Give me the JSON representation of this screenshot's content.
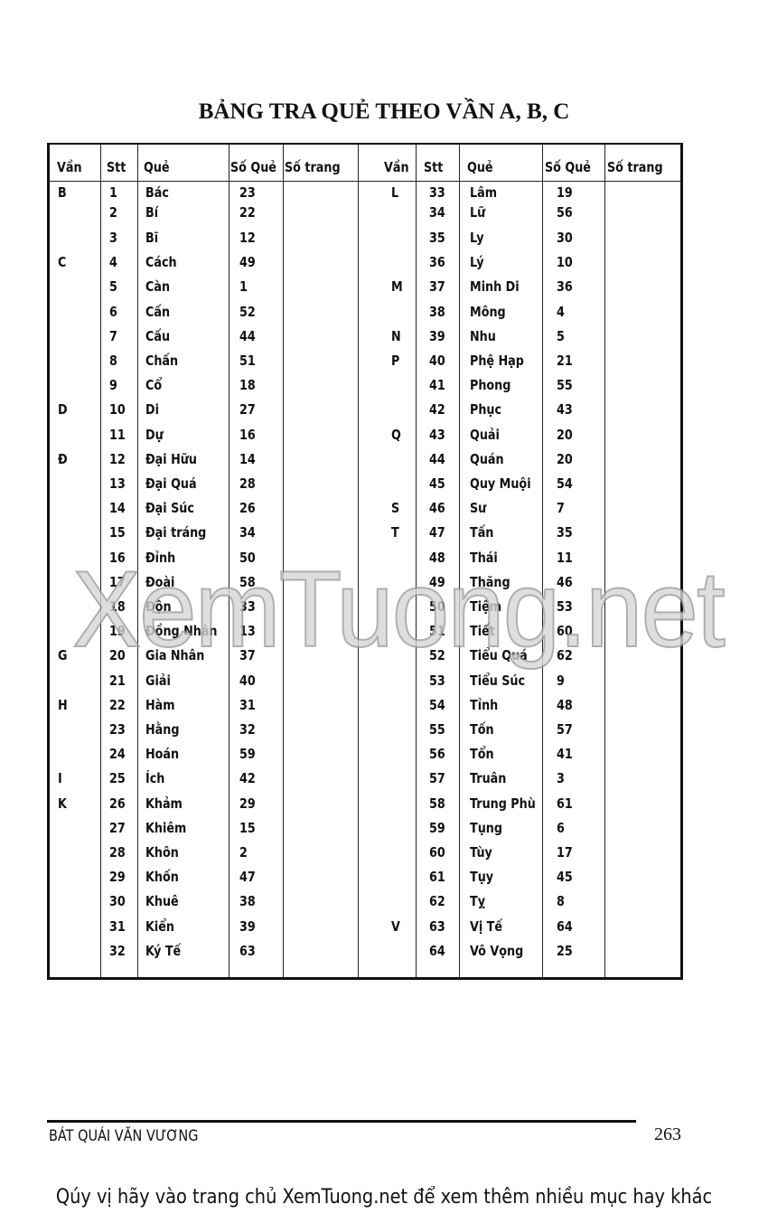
{
  "title": "BẢNG TRA QUẺ THEO VẦN  A, B, C",
  "headers": {
    "van": "Vần",
    "stt": "Stt",
    "que": "Quẻ",
    "so_que": "Số Quẻ",
    "so_trang": "Số trang"
  },
  "left_rows": [
    {
      "van": "B",
      "stt": "1",
      "que": "Bác",
      "so_que": "23"
    },
    {
      "van": "",
      "stt": "2",
      "que": "Bí",
      "so_que": "22"
    },
    {
      "van": "",
      "stt": "3",
      "que": "Bĩ",
      "so_que": "12"
    },
    {
      "van": "C",
      "stt": "4",
      "que": "Cách",
      "so_que": "49"
    },
    {
      "van": "",
      "stt": "5",
      "que": "Càn",
      "so_que": "1"
    },
    {
      "van": "",
      "stt": "6",
      "que": "Cấn",
      "so_que": "52"
    },
    {
      "van": "",
      "stt": "7",
      "que": "Cấu",
      "so_que": "44"
    },
    {
      "van": "",
      "stt": "8",
      "que": "Chấn",
      "so_que": "51"
    },
    {
      "van": "",
      "stt": "9",
      "que": "Cổ",
      "so_que": "18"
    },
    {
      "van": "D",
      "stt": "10",
      "que": "Di",
      "so_que": "27"
    },
    {
      "van": "",
      "stt": "11",
      "que": "Dự",
      "so_que": "16"
    },
    {
      "van": "Đ",
      "stt": "12",
      "que": "Đại Hữu",
      "so_que": "14"
    },
    {
      "van": "",
      "stt": "13",
      "que": "Đại Quá",
      "so_que": "28"
    },
    {
      "van": "",
      "stt": "14",
      "que": "Đại Súc",
      "so_que": "26"
    },
    {
      "van": "",
      "stt": "15",
      "que": "Đại tráng",
      "so_que": "34"
    },
    {
      "van": "",
      "stt": "16",
      "que": "Đỉnh",
      "so_que": "50"
    },
    {
      "van": "",
      "stt": "17",
      "que": "Đoài",
      "so_que": "58"
    },
    {
      "van": "",
      "stt": "18",
      "que": "Độn",
      "so_que": "33"
    },
    {
      "van": "",
      "stt": "19",
      "que": "Đồng Nhân",
      "so_que": "13"
    },
    {
      "van": "G",
      "stt": "20",
      "que": "Gia Nhân",
      "so_que": "37"
    },
    {
      "van": "",
      "stt": "21",
      "que": "Giải",
      "so_que": "40"
    },
    {
      "van": "H",
      "stt": "22",
      "que": "Hàm",
      "so_que": "31"
    },
    {
      "van": "",
      "stt": "23",
      "que": "Hằng",
      "so_que": "32"
    },
    {
      "van": "",
      "stt": "24",
      "que": "Hoán",
      "so_que": "59"
    },
    {
      "van": "I",
      "stt": "25",
      "que": "Ích",
      "so_que": "42"
    },
    {
      "van": "K",
      "stt": "26",
      "que": "Khảm",
      "so_que": "29"
    },
    {
      "van": "",
      "stt": "27",
      "que": "Khiêm",
      "so_que": "15"
    },
    {
      "van": "",
      "stt": "28",
      "que": "Khôn",
      "so_que": "2"
    },
    {
      "van": "",
      "stt": "29",
      "que": "Khốn",
      "so_que": "47"
    },
    {
      "van": "",
      "stt": "30",
      "que": "Khuê",
      "so_que": "38"
    },
    {
      "van": "",
      "stt": "31",
      "que": "Kiển",
      "so_que": "39"
    },
    {
      "van": "",
      "stt": "32",
      "que": "Ký Tế",
      "so_que": "63"
    }
  ],
  "right_rows": [
    {
      "van": "L",
      "stt": "33",
      "que": "Lâm",
      "so_que": "19"
    },
    {
      "van": "",
      "stt": "34",
      "que": "Lữ",
      "so_que": "56"
    },
    {
      "van": "",
      "stt": "35",
      "que": "Ly",
      "so_que": "30"
    },
    {
      "van": "",
      "stt": "36",
      "que": "Lý",
      "so_que": "10"
    },
    {
      "van": "M",
      "stt": "37",
      "que": "Minh Di",
      "so_que": "36"
    },
    {
      "van": "",
      "stt": "38",
      "que": "Mông",
      "so_que": "4"
    },
    {
      "van": "N",
      "stt": "39",
      "que": "Nhu",
      "so_que": "5"
    },
    {
      "van": "P",
      "stt": "40",
      "que": "Phệ Hạp",
      "so_que": "21"
    },
    {
      "van": "",
      "stt": "41",
      "que": "Phong",
      "so_que": "55"
    },
    {
      "van": "",
      "stt": "42",
      "que": "Phục",
      "so_que": "43"
    },
    {
      "van": "Q",
      "stt": "43",
      "que": "Quải",
      "so_que": "20"
    },
    {
      "van": "",
      "stt": "44",
      "que": "Quán",
      "so_que": "20"
    },
    {
      "van": "",
      "stt": "45",
      "que": "Quy Muội",
      "so_que": "54"
    },
    {
      "van": "S",
      "stt": "46",
      "que": "Sư",
      "so_que": "7"
    },
    {
      "van": "T",
      "stt": "47",
      "que": "Tấn",
      "so_que": "35"
    },
    {
      "van": "",
      "stt": "48",
      "que": "Thái",
      "so_que": "11"
    },
    {
      "van": "",
      "stt": "49",
      "que": "Thăng",
      "so_que": "46"
    },
    {
      "van": "",
      "stt": "50",
      "que": "Tiệm",
      "so_que": "53"
    },
    {
      "van": "",
      "stt": "51",
      "que": "Tiết",
      "so_que": "60"
    },
    {
      "van": "",
      "stt": "52",
      "que": "Tiểu Quá",
      "so_que": "62"
    },
    {
      "van": "",
      "stt": "53",
      "que": "Tiểu Súc",
      "so_que": "9"
    },
    {
      "van": "",
      "stt": "54",
      "que": "Tỉnh",
      "so_que": "48"
    },
    {
      "van": "",
      "stt": "55",
      "que": "Tốn",
      "so_que": "57"
    },
    {
      "van": "",
      "stt": "56",
      "que": "Tổn",
      "so_que": "41"
    },
    {
      "van": "",
      "stt": "57",
      "que": "Truân",
      "so_que": "3"
    },
    {
      "van": "",
      "stt": "58",
      "que": "Trung Phù",
      "so_que": "61"
    },
    {
      "van": "",
      "stt": "59",
      "que": "Tụng",
      "so_que": "6"
    },
    {
      "van": "",
      "stt": "60",
      "que": "Tùy",
      "so_que": "17"
    },
    {
      "van": "",
      "stt": "61",
      "que": "Tụy",
      "so_que": "45"
    },
    {
      "van": "",
      "stt": "62",
      "que": "Tỵ",
      "so_que": "8"
    },
    {
      "van": "V",
      "stt": "63",
      "que": "Vị Tế",
      "so_que": "64"
    },
    {
      "van": "",
      "stt": "64",
      "que": "Vô Vọng",
      "so_que": "25"
    }
  ],
  "watermark": "XemTuong.net",
  "footer": {
    "book_title": "BÁT QUÁI VĂN VƯƠNG",
    "page_number": "263"
  },
  "caption": "Qúy vị hãy vào trang chủ XemTuong.net để xem thêm nhiều mục hay khác"
}
